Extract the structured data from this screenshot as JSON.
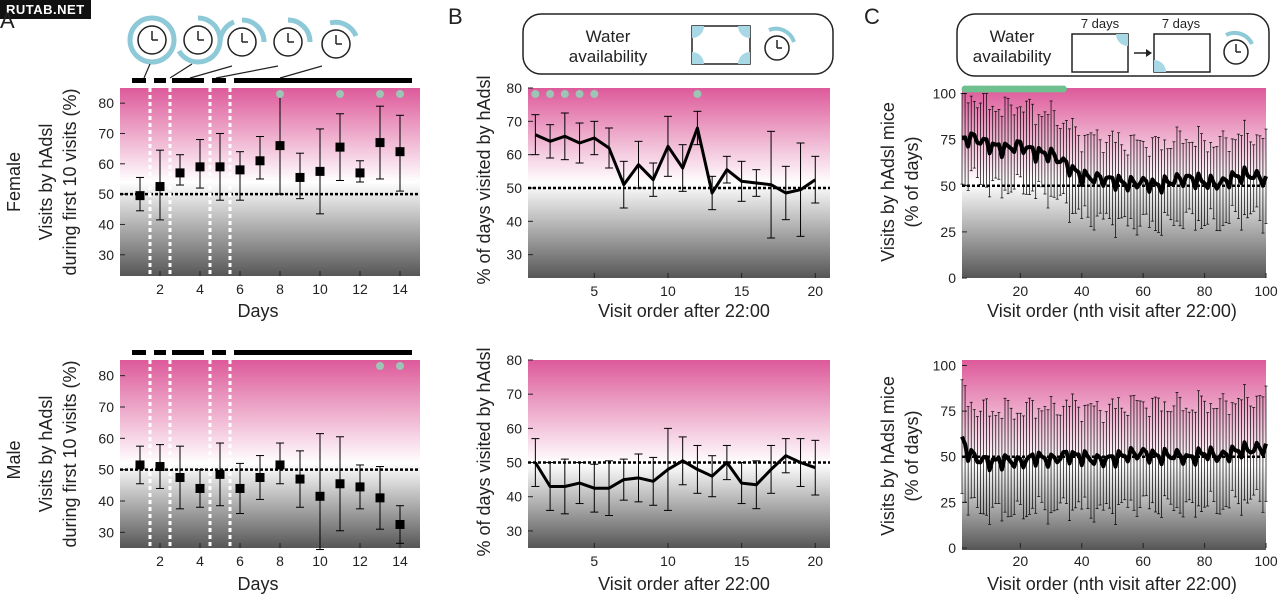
{
  "watermark": "RUTAB.NET",
  "colors": {
    "bg_top": "#e0609e",
    "bg_mid": "#ffffff",
    "bg_bottom": "#5a5a5a",
    "line": "#000000",
    "marker": "#000000",
    "sig_dot_gray": "#9dc4b4",
    "sig_dot_green": "#6fc08f",
    "clock_ring": "#8ec9d8",
    "water_blue": "#a8d8e6"
  },
  "panels": {
    "A": {
      "letter": "A",
      "row_labels": [
        "Female",
        "Male"
      ],
      "xlabel": "Days",
      "ylabel_line1": "Visits by hAdsl",
      "ylabel_line2": "during first 10 visits (%)"
    },
    "B": {
      "letter": "B",
      "xlabel": "Visit order after 22:00",
      "ylabel": "% of days visited by hAdsl",
      "inset_text_line1": "Water",
      "inset_text_line2": "availability"
    },
    "C": {
      "letter": "C",
      "xlabel": "Visit order (nth visit after 22:00)",
      "ylabel_line1": "Visits by hAdsl mice",
      "ylabel_line2": "(% of days)",
      "inset_text_line1": "Water",
      "inset_text_line2": "availability",
      "inset_days1": "7 days",
      "inset_days2": "7 days"
    }
  },
  "chart_data": [
    {
      "id": "A-female",
      "type": "scatter",
      "title": "",
      "xlabel": "Days",
      "ylabel": "Visits by hAdsl during first 10 visits (%)",
      "xlim": [
        0,
        15
      ],
      "ylim": [
        23,
        85
      ],
      "x_ticks": [
        2,
        4,
        6,
        8,
        10,
        12,
        14
      ],
      "y_ticks": [
        30,
        40,
        50,
        60,
        70,
        80
      ],
      "reference_line": 50,
      "x": [
        1,
        2,
        3,
        4,
        5,
        6,
        7,
        8,
        9,
        10,
        11,
        12,
        13,
        14
      ],
      "y": [
        49.5,
        52.5,
        57,
        59,
        59,
        58,
        61,
        66,
        55.5,
        57.5,
        65.5,
        57,
        67,
        64
      ],
      "err_low": [
        5,
        11,
        4,
        7,
        11,
        10,
        6,
        16,
        7,
        14,
        11,
        3,
        12,
        13
      ],
      "err_high": [
        6,
        12,
        6,
        9,
        11,
        6,
        8,
        17,
        8,
        14,
        11,
        4,
        12,
        12
      ],
      "significant_x": [
        8,
        11,
        13,
        14
      ],
      "bars_above": [
        [
          0.6,
          1.3
        ],
        [
          1.7,
          2.3
        ],
        [
          2.6,
          4.2
        ],
        [
          4.6,
          5.3
        ],
        [
          5.7,
          14.6
        ]
      ],
      "dashed_vlines": [
        1.5,
        2.5,
        4.5,
        5.5
      ]
    },
    {
      "id": "A-male",
      "type": "scatter",
      "title": "",
      "xlabel": "Days",
      "ylabel": "Visits by hAdsl during first 10 visits (%)",
      "xlim": [
        0,
        15
      ],
      "ylim": [
        25,
        85
      ],
      "x_ticks": [
        2,
        4,
        6,
        8,
        10,
        12,
        14
      ],
      "y_ticks": [
        30,
        40,
        50,
        60,
        70,
        80
      ],
      "reference_line": 50,
      "x": [
        1,
        2,
        3,
        4,
        5,
        6,
        7,
        8,
        9,
        10,
        11,
        12,
        13,
        14
      ],
      "y": [
        51.5,
        51,
        47.5,
        44,
        48.5,
        44,
        47.5,
        51.5,
        47,
        41.5,
        45.5,
        44.5,
        41,
        32.5
      ],
      "err_low": [
        6,
        7,
        10,
        6,
        10,
        8,
        7,
        6,
        9,
        17,
        15,
        7,
        10,
        6
      ],
      "err_high": [
        6,
        7,
        10,
        6,
        10,
        8,
        7,
        7,
        9,
        20,
        15,
        7,
        10,
        6
      ],
      "significant_x": [
        13,
        14
      ],
      "bars_above": [
        [
          0.6,
          1.3
        ],
        [
          1.7,
          2.3
        ],
        [
          2.6,
          4.2
        ],
        [
          4.6,
          5.3
        ],
        [
          5.7,
          14.6
        ]
      ],
      "dashed_vlines": [
        1.5,
        2.5,
        4.5,
        5.5
      ]
    },
    {
      "id": "B-female",
      "type": "line",
      "title": "",
      "xlabel": "Visit order after 22:00",
      "ylabel": "% of days visited by hAdsl",
      "xlim": [
        0.5,
        21
      ],
      "ylim": [
        23,
        80
      ],
      "x_ticks": [
        5,
        10,
        15,
        20
      ],
      "y_ticks": [
        30,
        40,
        50,
        60,
        70,
        80
      ],
      "reference_line": 50,
      "x": [
        1,
        2,
        3,
        4,
        5,
        6,
        7,
        8,
        9,
        10,
        11,
        12,
        13,
        14,
        15,
        16,
        17,
        18,
        19,
        20
      ],
      "y": [
        66,
        64,
        65.5,
        63.5,
        65,
        62,
        51,
        57,
        52.5,
        62.5,
        56,
        68,
        48.5,
        55.5,
        52,
        51.5,
        51,
        48.5,
        49.5,
        52.5
      ],
      "err": [
        6,
        5,
        7,
        6,
        5,
        6,
        7,
        7,
        5,
        9,
        7,
        5,
        5,
        4,
        6,
        4,
        16,
        8,
        14,
        7
      ],
      "significant_x": [
        1,
        2,
        3,
        4,
        5,
        12
      ]
    },
    {
      "id": "B-male",
      "type": "line",
      "title": "",
      "xlabel": "Visit order after 22:00",
      "ylabel": "% of days visited by hAdsl",
      "xlim": [
        0.5,
        21
      ],
      "ylim": [
        25,
        80
      ],
      "x_ticks": [
        5,
        10,
        15,
        20
      ],
      "y_ticks": [
        30,
        40,
        50,
        60,
        70,
        80
      ],
      "reference_line": 50,
      "x": [
        1,
        2,
        3,
        4,
        5,
        6,
        7,
        8,
        9,
        10,
        11,
        12,
        13,
        14,
        15,
        16,
        17,
        18,
        19,
        20
      ],
      "y": [
        50,
        43,
        43,
        44,
        42.5,
        42.5,
        45,
        45.5,
        44.5,
        48,
        50.5,
        48,
        46,
        50,
        44,
        43.5,
        48,
        52,
        50,
        48.5
      ],
      "err": [
        7,
        7,
        8,
        6,
        7,
        8,
        6,
        7,
        7,
        12,
        7,
        7,
        6,
        5,
        6,
        7,
        7,
        5,
        7,
        8
      ],
      "significant_x": []
    },
    {
      "id": "C-female",
      "type": "line",
      "title": "",
      "xlabel": "Visit order (nth visit after 22:00)",
      "ylabel": "Visits by hAdsl mice (% of days)",
      "xlim": [
        1,
        100
      ],
      "ylim": [
        0,
        103
      ],
      "x_ticks": [
        20,
        40,
        60,
        80,
        100
      ],
      "y_ticks": [
        0,
        25,
        50,
        75,
        100
      ],
      "reference_line": 50,
      "anchors_x": [
        1,
        5,
        10,
        15,
        20,
        25,
        30,
        33,
        36,
        40,
        45,
        50,
        55,
        60,
        65,
        70,
        75,
        80,
        85,
        90,
        95,
        100
      ],
      "anchors_y": [
        75,
        76,
        72,
        70,
        72,
        68,
        67,
        64,
        60,
        55,
        54,
        53,
        51,
        52,
        50,
        53,
        54,
        52,
        51,
        55,
        56,
        53
      ],
      "err_half": 22,
      "significant_x": [
        2,
        3,
        4,
        5,
        6,
        7,
        8,
        9,
        10,
        11,
        12,
        13,
        14,
        15,
        16,
        17,
        18,
        19,
        20,
        21,
        22,
        23,
        24,
        25,
        26,
        27,
        28,
        29,
        30,
        31,
        32,
        33,
        34
      ]
    },
    {
      "id": "C-male",
      "type": "line",
      "title": "",
      "xlabel": "Visit order (nth visit after 22:00)",
      "ylabel": "Visits by hAdsl mice (% of days)",
      "xlim": [
        1,
        100
      ],
      "ylim": [
        0,
        103
      ],
      "x_ticks": [
        20,
        40,
        60,
        80,
        100
      ],
      "y_ticks": [
        0,
        25,
        50,
        75,
        100
      ],
      "reference_line": 50,
      "anchors_x": [
        1,
        3,
        6,
        10,
        15,
        20,
        25,
        30,
        35,
        40,
        45,
        50,
        55,
        60,
        65,
        70,
        75,
        80,
        85,
        90,
        95,
        100
      ],
      "anchors_y": [
        60,
        52,
        49,
        47,
        48,
        47,
        50,
        48,
        51,
        50,
        48,
        49,
        51,
        52,
        50,
        51,
        49,
        52,
        50,
        53,
        54,
        55
      ],
      "err_half": 28,
      "significant_x": []
    }
  ]
}
